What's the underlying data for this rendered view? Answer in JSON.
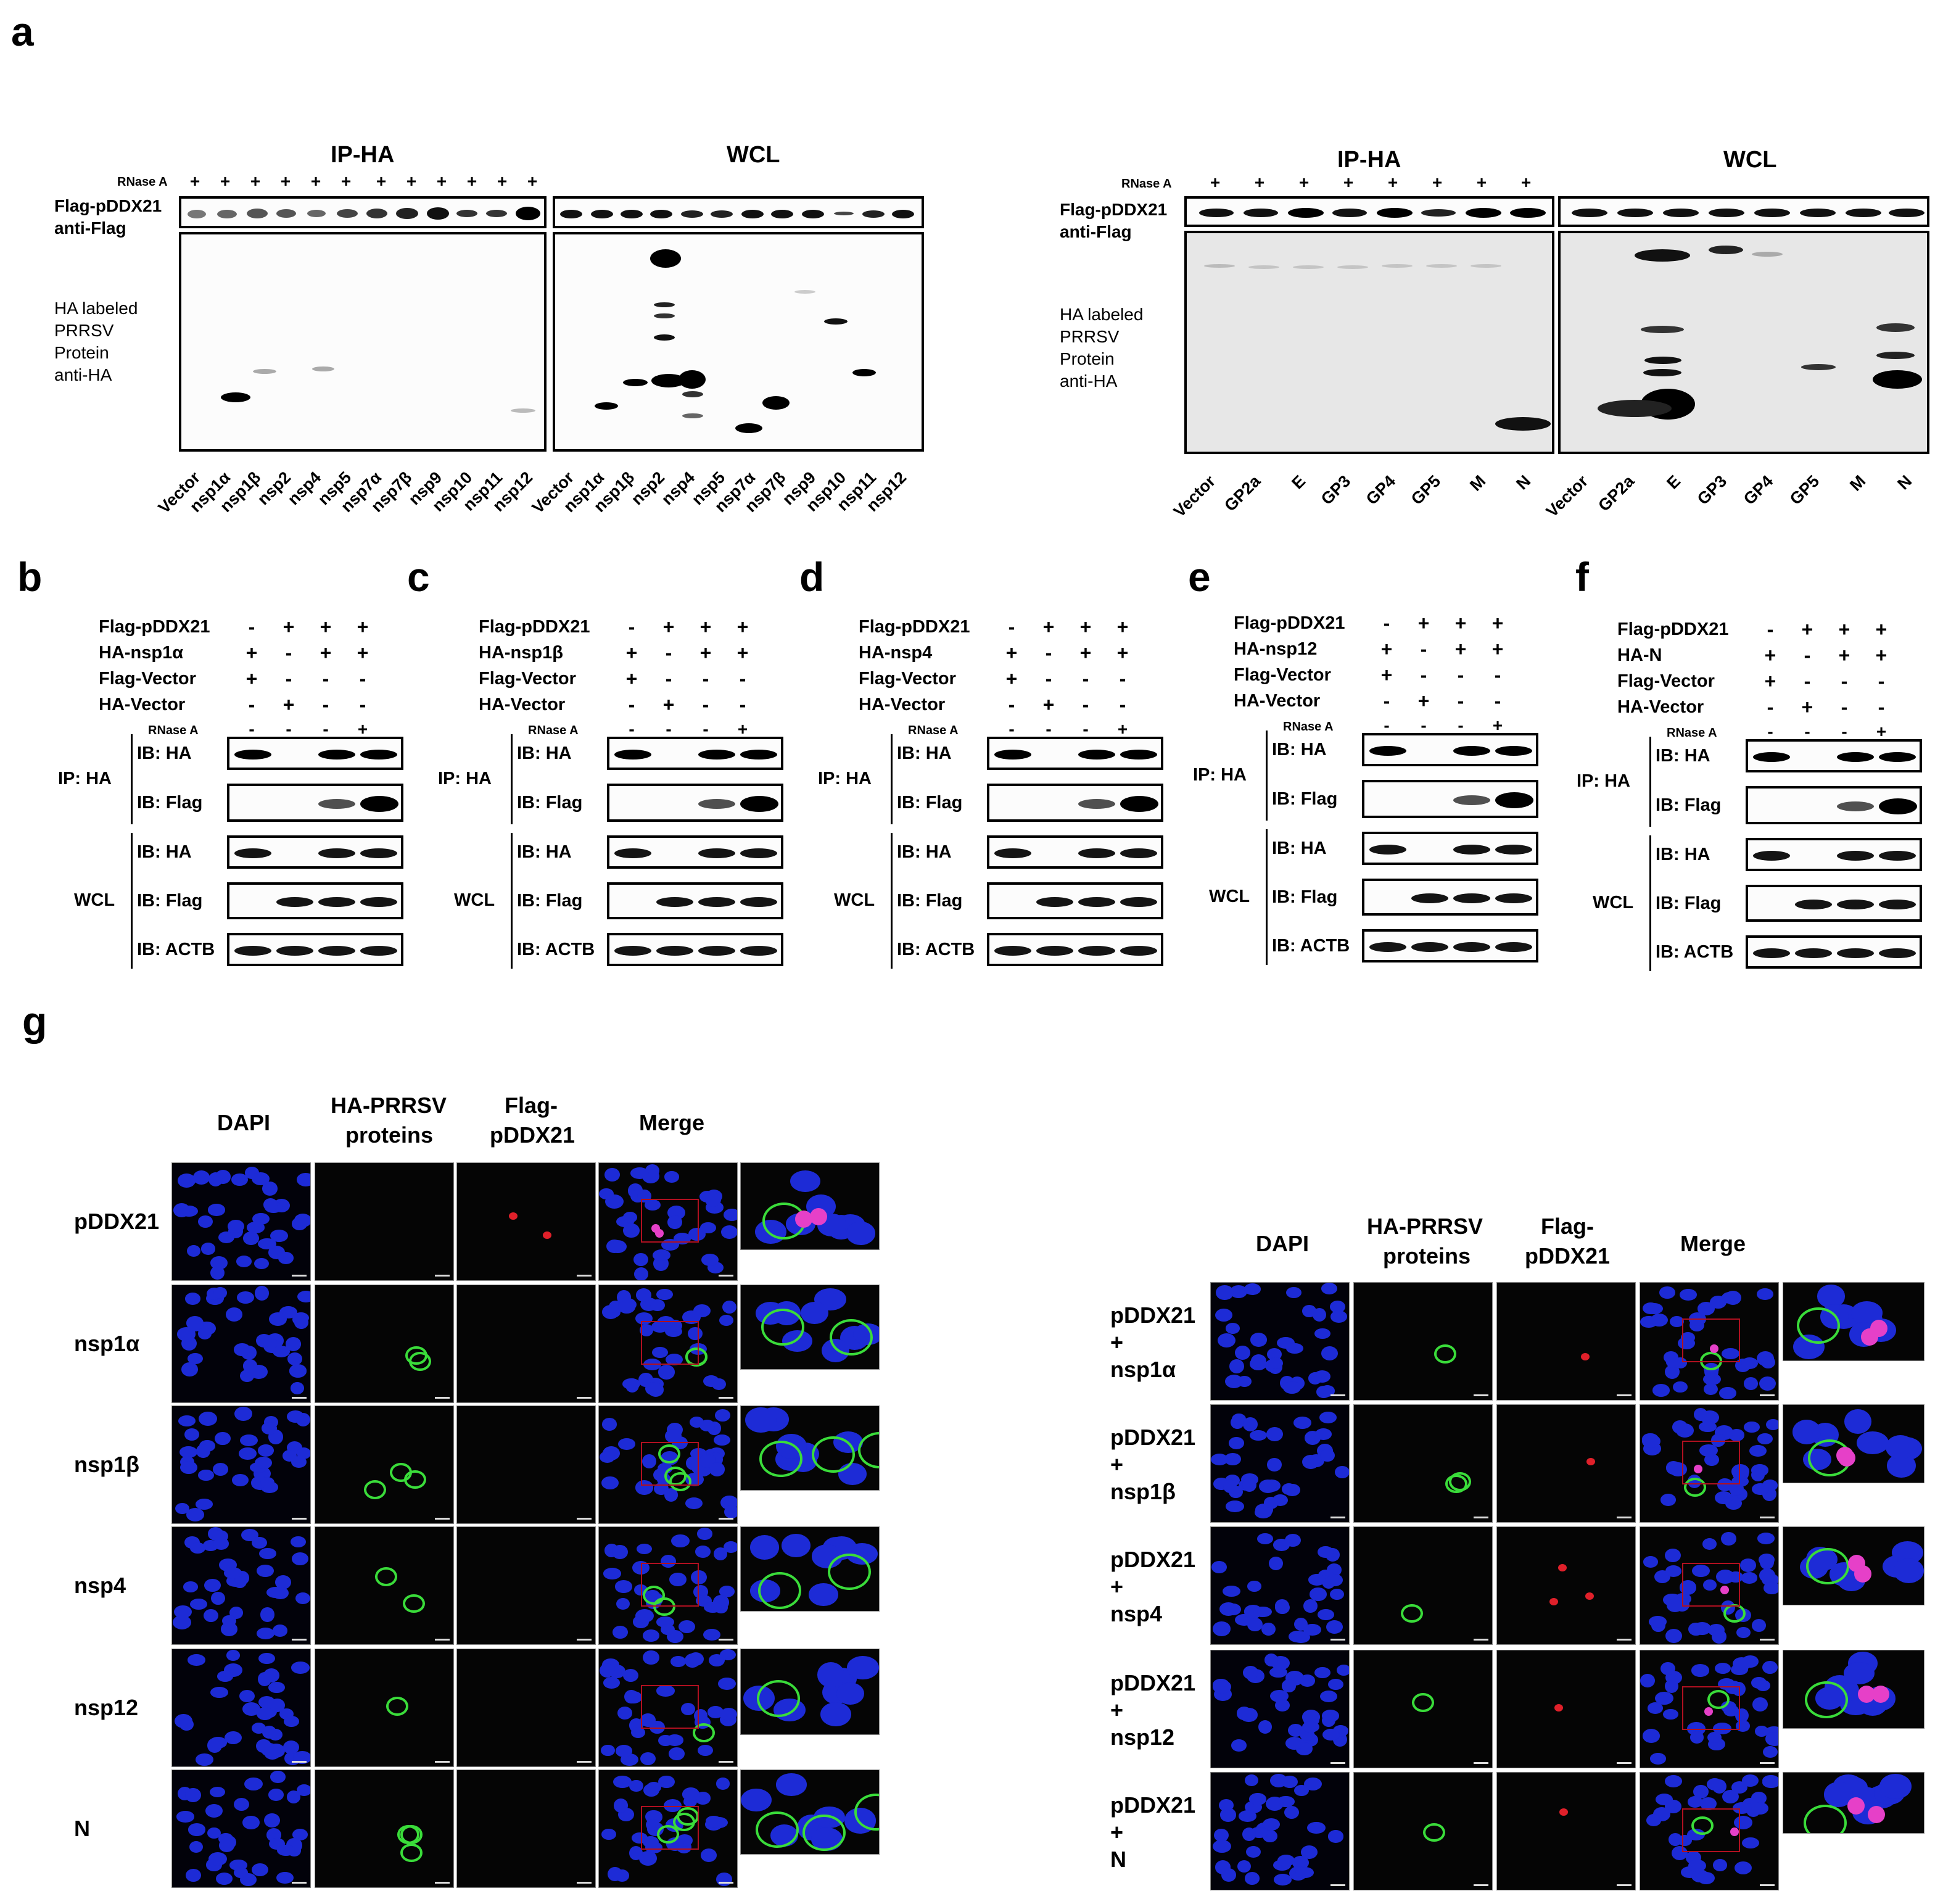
{
  "panels": {
    "a": "a",
    "b": "b",
    "c": "c",
    "d": "d",
    "e": "e",
    "f": "f",
    "g": "g"
  },
  "a_left": {
    "ip_title": "IP-HA",
    "wcl_title": "WCL",
    "rnase": "RNase A",
    "plus": "+",
    "flag_label_1": "Flag-pDDX21",
    "flag_label_2": "anti-Flag",
    "ha_label_1": "HA labeled",
    "ha_label_2": "PRRSV",
    "ha_label_3": "Protein",
    "ha_label_4": "anti-HA",
    "lanes": [
      "Vector",
      "nsp1α",
      "nsp1β",
      "nsp2",
      "nsp4",
      "nsp5",
      "nsp7α",
      "nsp7β",
      "nsp9",
      "nsp10",
      "nsp11",
      "nsp12"
    ]
  },
  "a_right": {
    "ip_title": "IP-HA",
    "wcl_title": "WCL",
    "rnase": "RNase A",
    "plus": "+",
    "flag_label_1": "Flag-pDDX21",
    "flag_label_2": "anti-Flag",
    "ha_label_1": "HA labeled",
    "ha_label_2": "PRRSV",
    "ha_label_3": "Protein",
    "ha_label_4": "anti-HA",
    "lanes": [
      "Vector",
      "GP2a",
      "E",
      "GP3",
      "GP4",
      "GP5",
      "M",
      "N"
    ]
  },
  "coip": {
    "ip_label": "IP: HA",
    "wcl_label": "WCL",
    "ib_ha": "IB: HA",
    "ib_flag": "IB: Flag",
    "ib_actb": "IB: ACTB",
    "rnase": "RNase A",
    "row_flag": "Flag-pDDX21",
    "row_flagvec": "Flag-Vector",
    "row_havec": "HA-Vector",
    "signs": {
      "r1": [
        "-",
        "+",
        "+",
        "+"
      ],
      "r2": [
        "+",
        "-",
        "+",
        "+"
      ],
      "r3": [
        "+",
        "-",
        "-",
        "-"
      ],
      "r4": [
        "-",
        "+",
        "-",
        "-"
      ],
      "r5": [
        "-",
        "-",
        "-",
        "+"
      ]
    },
    "b_protein": "HA-nsp1α",
    "c_protein": "HA-nsp1β",
    "d_protein": "HA-nsp4",
    "e_protein": "HA-nsp12",
    "f_protein": "HA-N"
  },
  "g": {
    "col_dapi": "DAPI",
    "col_ha_1": "HA-PRRSV",
    "col_ha_2": "proteins",
    "col_flag_1": "Flag-",
    "col_flag_2": "pDDX21",
    "col_merge": "Merge",
    "left_rows": [
      "pDDX21",
      "nsp1α",
      "nsp1β",
      "nsp4",
      "nsp12",
      "N"
    ],
    "right_top": "pDDX21",
    "right_plus": "+",
    "right_rows": [
      "nsp1α",
      "nsp1β",
      "nsp4",
      "nsp12",
      "N"
    ]
  }
}
